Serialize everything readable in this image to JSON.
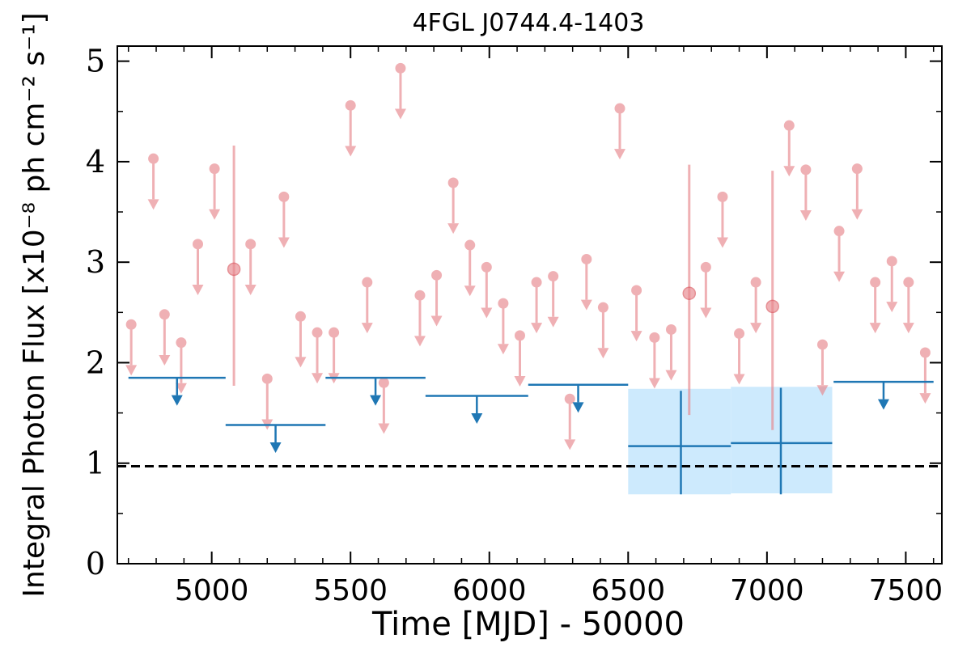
{
  "chart_data": {
    "type": "scatter",
    "title": "4FGL J0744.4-1403",
    "xlabel": "Time [MJD] - 50000",
    "ylabel": "Integral Photon Flux [x10⁻⁸ ph cm⁻² s⁻¹]",
    "xlim": [
      4660,
      7630
    ],
    "ylim": [
      0,
      5.15
    ],
    "xticks": [
      5000,
      5500,
      6000,
      6500,
      7000,
      7500
    ],
    "xtick_labels": [
      "5000",
      "5500",
      "6000",
      "6500",
      "7000",
      "7500"
    ],
    "yticks": [
      0,
      1,
      2,
      3,
      4,
      5
    ],
    "ytick_labels": [
      "0",
      "1",
      "2",
      "3",
      "4",
      "5"
    ],
    "grid": false,
    "reference_line": {
      "y": 0.97,
      "style": "dashed",
      "color": "#000000"
    },
    "colors": {
      "short_bins": "#e8878d",
      "long_bins": "#1f77b4",
      "band": "#cdeafd"
    },
    "series": [
      {
        "upper_limits": [
          {
            "x": 4710,
            "y": 2.38
          },
          {
            "x": 4790,
            "y": 4.03
          },
          {
            "x": 4830,
            "y": 2.48
          },
          {
            "x": 4890,
            "y": 2.2
          },
          {
            "x": 4950,
            "y": 3.18
          },
          {
            "x": 5010,
            "y": 3.93
          },
          {
            "x": 5140,
            "y": 3.18
          },
          {
            "x": 5200,
            "y": 1.84
          },
          {
            "x": 5260,
            "y": 3.65
          },
          {
            "x": 5320,
            "y": 2.46
          },
          {
            "x": 5380,
            "y": 2.3
          },
          {
            "x": 5440,
            "y": 2.3
          },
          {
            "x": 5500,
            "y": 4.56
          },
          {
            "x": 5560,
            "y": 2.8
          },
          {
            "x": 5620,
            "y": 1.8
          },
          {
            "x": 5680,
            "y": 4.93
          },
          {
            "x": 5750,
            "y": 2.67
          },
          {
            "x": 5810,
            "y": 2.87
          },
          {
            "x": 5870,
            "y": 3.79
          },
          {
            "x": 5930,
            "y": 3.17
          },
          {
            "x": 5990,
            "y": 2.95
          },
          {
            "x": 6050,
            "y": 2.59
          },
          {
            "x": 6110,
            "y": 2.27
          },
          {
            "x": 6170,
            "y": 2.8
          },
          {
            "x": 6230,
            "y": 2.86
          },
          {
            "x": 6290,
            "y": 1.64
          },
          {
            "x": 6350,
            "y": 3.03
          },
          {
            "x": 6410,
            "y": 2.55
          },
          {
            "x": 6470,
            "y": 4.53
          },
          {
            "x": 6530,
            "y": 2.72
          },
          {
            "x": 6595,
            "y": 2.25
          },
          {
            "x": 6655,
            "y": 2.33
          },
          {
            "x": 6780,
            "y": 2.95
          },
          {
            "x": 6840,
            "y": 3.65
          },
          {
            "x": 6900,
            "y": 2.29
          },
          {
            "x": 6960,
            "y": 2.8
          },
          {
            "x": 7080,
            "y": 4.36
          },
          {
            "x": 7140,
            "y": 3.92
          },
          {
            "x": 7200,
            "y": 2.18
          },
          {
            "x": 7260,
            "y": 3.31
          },
          {
            "x": 7325,
            "y": 3.93
          },
          {
            "x": 7390,
            "y": 2.8
          },
          {
            "x": 7450,
            "y": 3.01
          },
          {
            "x": 7510,
            "y": 2.8
          },
          {
            "x": 7570,
            "y": 2.1
          }
        ],
        "detections": [
          {
            "x": 5080,
            "y": 2.93,
            "y_low": 1.77,
            "y_high": 4.16
          },
          {
            "x": 6720,
            "y": 2.69,
            "y_low": 1.48,
            "y_high": 3.97
          },
          {
            "x": 7020,
            "y": 2.56,
            "y_low": 1.33,
            "y_high": 3.91
          }
        ]
      },
      {
        "upper_limits": [
          {
            "x_start": 4700,
            "x_end": 5050,
            "y": 1.85
          },
          {
            "x_start": 5050,
            "x_end": 5410,
            "y": 1.38
          },
          {
            "x_start": 5410,
            "x_end": 5770,
            "y": 1.85
          },
          {
            "x_start": 5770,
            "x_end": 6140,
            "y": 1.67
          },
          {
            "x_start": 6140,
            "x_end": 6500,
            "y": 1.78
          },
          {
            "x_start": 7240,
            "x_end": 7600,
            "y": 1.81
          }
        ],
        "detections": [
          {
            "x": 6690,
            "x_start": 6500,
            "x_end": 6870,
            "y": 1.17,
            "y_low": 0.69,
            "y_high": 1.72
          },
          {
            "x": 7050,
            "x_start": 6870,
            "x_end": 7235,
            "y": 1.2,
            "y_low": 0.69,
            "y_high": 1.75
          }
        ],
        "bands": [
          {
            "x_start": 6500,
            "x_end": 6870,
            "y_low": 0.69,
            "y_high": 1.74
          },
          {
            "x_start": 6870,
            "x_end": 7235,
            "y_low": 0.7,
            "y_high": 1.76
          }
        ]
      }
    ]
  }
}
